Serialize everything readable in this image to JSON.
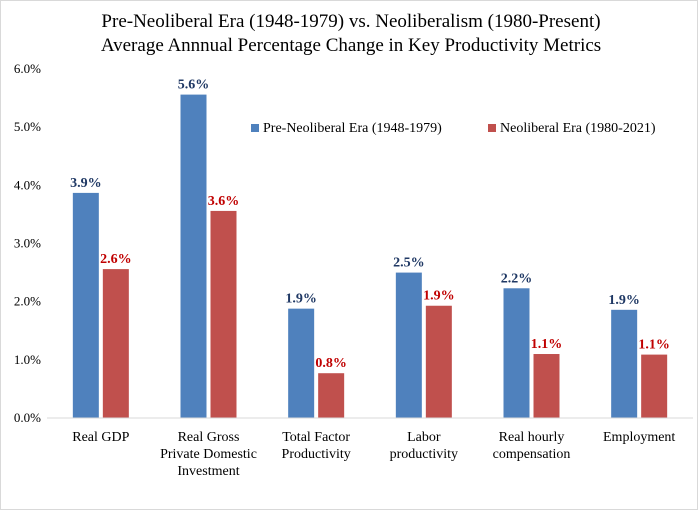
{
  "chart_data": {
    "type": "bar",
    "title": "Pre-Neoliberal Era (1948-1979) vs. Neoliberalism (1980-Present)",
    "subtitle": "Average Annnual Percentage Change in Key Productivity Metrics",
    "xlabel": "",
    "ylabel": "",
    "categories": [
      [
        "Real GDP"
      ],
      [
        "Real Gross",
        "Private Domestic",
        "Investment"
      ],
      [
        "Total Factor",
        "Productivity"
      ],
      [
        "Labor",
        "productivity"
      ],
      [
        "Real hourly",
        "compensation"
      ],
      [
        "Employment"
      ]
    ],
    "series": [
      {
        "name": "Pre-Neoliberal Era (1948-1979)",
        "color": "#4f81bd",
        "label_color": "#1f3864",
        "values": [
          3.87,
          5.56,
          1.88,
          2.5,
          2.23,
          1.86
        ],
        "data_labels": [
          "3.9%",
          "5.6%",
          "1.9%",
          "2.5%",
          "2.2%",
          "1.9%"
        ]
      },
      {
        "name": "Neoliberal Era (1980-2021)",
        "color": "#c0504d",
        "label_color": "#c00000",
        "values": [
          2.56,
          3.56,
          0.77,
          1.93,
          1.1,
          1.09
        ],
        "data_labels": [
          "2.6%",
          "3.6%",
          "0.8%",
          "1.9%",
          "1.1%",
          "1.1%"
        ]
      }
    ],
    "ylim": [
      0,
      6
    ],
    "yticks": [
      0,
      1,
      2,
      3,
      4,
      5,
      6
    ],
    "ytick_labels": [
      "0.0%",
      "1.0%",
      "2.0%",
      "3.0%",
      "4.0%",
      "5.0%",
      "6.0%"
    ],
    "grid": false,
    "legend_position": "top-right"
  }
}
